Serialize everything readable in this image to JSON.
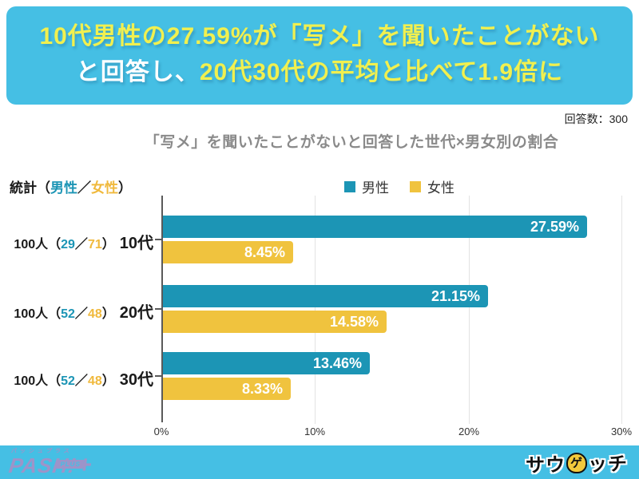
{
  "banner": {
    "line1": "10代男性の27.59%が「写メ」を聞いたことがない",
    "line2_white": "と回答し、",
    "line2_yellow": "20代30代の平均と比べて1.9倍に",
    "bg_color": "#45BFE4",
    "accent_color": "#F1F04F"
  },
  "meta": {
    "respondents": "回答数：300"
  },
  "stats_label": {
    "prefix": "統計（",
    "male": "男性",
    "separator": "／",
    "female": "女性",
    "suffix": "）"
  },
  "chart_data": {
    "type": "bar",
    "orientation": "horizontal",
    "title": "「写メ」を聞いたことがないと回答した世代×男女別の割合",
    "categories": [
      "10代",
      "20代",
      "30代"
    ],
    "series": [
      {
        "name": "男性",
        "color": "#1C95B5",
        "values": [
          27.59,
          21.15,
          13.46
        ]
      },
      {
        "name": "女性",
        "color": "#F0C33E",
        "values": [
          8.45,
          14.58,
          8.33
        ]
      }
    ],
    "value_suffix": "%",
    "row_annotations": [
      {
        "total": "100人",
        "open": "（",
        "male_count": "29",
        "slash": "／",
        "female_count": "71",
        "close": "）"
      },
      {
        "total": "100人",
        "open": "（",
        "male_count": "52",
        "slash": "／",
        "female_count": "48",
        "close": "）"
      },
      {
        "total": "100人",
        "open": "（",
        "male_count": "52",
        "slash": "／",
        "female_count": "48",
        "close": "）"
      }
    ],
    "x_tick_labels": [
      "0%",
      "10%",
      "20%",
      "30%"
    ],
    "xlim": [
      0,
      30
    ],
    "grid": true,
    "legend_position": "top-center",
    "value_labels": "inside-end"
  },
  "footer": {
    "pash_small": "パッシュプラス",
    "pash_main": "PASH!",
    "pash_plus_sign": "+",
    "pash_plus_label": "PLUS",
    "right_logo_pre": "サウ",
    "right_logo_mascot": "ゲ",
    "right_logo_post": "ッチ"
  }
}
